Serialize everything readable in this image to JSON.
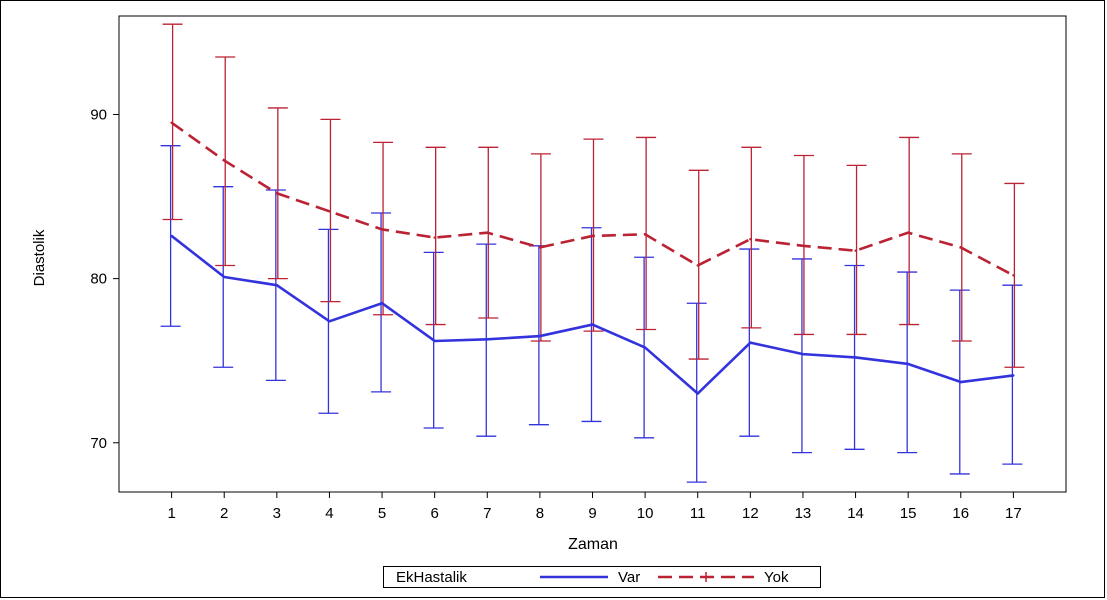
{
  "chart_data": {
    "type": "line",
    "xlabel": "Zaman",
    "ylabel": "Diastolik",
    "x": [
      1,
      2,
      3,
      4,
      5,
      6,
      7,
      8,
      9,
      10,
      11,
      12,
      13,
      14,
      15,
      16,
      17
    ],
    "ylim": [
      67,
      96
    ],
    "yticks": [
      70,
      80,
      90
    ],
    "grid": false,
    "legend": {
      "title": "EkHastalik",
      "placement": "bottom"
    },
    "series": [
      {
        "name": "Var",
        "color": "#3333dd",
        "style": "solid",
        "values": [
          82.6,
          80.1,
          79.6,
          77.4,
          78.5,
          76.2,
          76.3,
          76.5,
          77.2,
          75.8,
          73.0,
          76.1,
          75.4,
          75.2,
          74.8,
          73.7,
          74.1
        ],
        "upper": [
          88.1,
          85.6,
          85.4,
          83.0,
          84.0,
          81.6,
          82.1,
          82.0,
          83.1,
          81.3,
          78.5,
          81.8,
          81.2,
          80.8,
          80.4,
          79.3,
          79.6
        ],
        "lower": [
          77.1,
          74.6,
          73.8,
          71.8,
          73.1,
          70.9,
          70.4,
          71.1,
          71.3,
          70.3,
          67.6,
          70.4,
          69.4,
          69.6,
          69.4,
          68.1,
          68.7
        ]
      },
      {
        "name": "Yok",
        "color": "#bb2233",
        "style": "dashed",
        "values": [
          89.5,
          87.2,
          85.2,
          84.1,
          83.0,
          82.5,
          82.8,
          81.9,
          82.6,
          82.7,
          80.8,
          82.4,
          82.0,
          81.7,
          82.8,
          81.9,
          80.2
        ],
        "upper": [
          95.5,
          93.5,
          90.4,
          89.7,
          88.3,
          88.0,
          88.0,
          87.6,
          88.5,
          88.6,
          86.6,
          88.0,
          87.5,
          86.9,
          88.6,
          87.6,
          85.8
        ],
        "lower": [
          83.6,
          80.8,
          80.0,
          78.6,
          77.8,
          77.2,
          77.6,
          76.2,
          76.8,
          76.9,
          75.1,
          77.0,
          76.6,
          76.6,
          77.2,
          76.2,
          74.6
        ]
      }
    ]
  }
}
